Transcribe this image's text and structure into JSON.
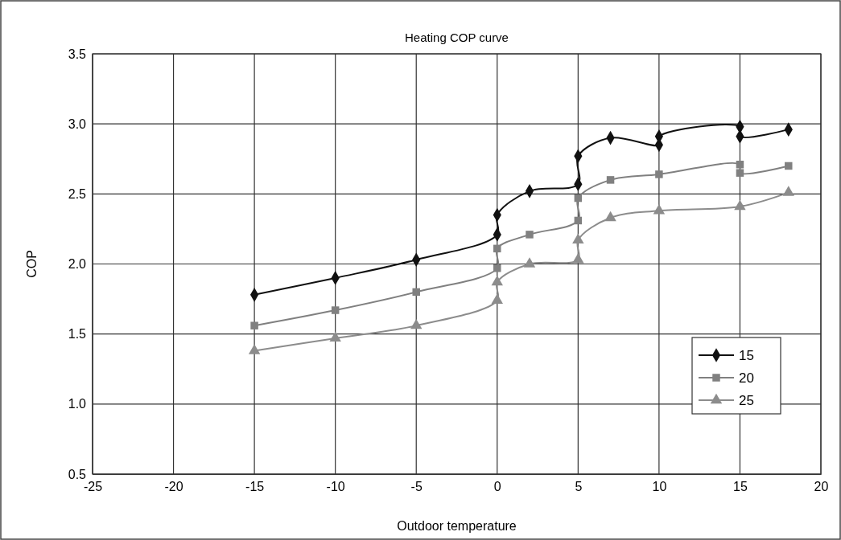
{
  "chart_data": {
    "type": "line",
    "title": "Heating COP curve",
    "xlabel": "Outdoor temperature",
    "ylabel": "COP",
    "xlim": [
      -25,
      20
    ],
    "xticks": [
      -25,
      -20,
      -15,
      -10,
      -5,
      0,
      5,
      10,
      15,
      20
    ],
    "ylim": [
      0.5,
      3.5
    ],
    "yticks": [
      {
        "value": 0.5,
        "label": "0.5"
      },
      {
        "value": 1,
        "label": "1.0"
      },
      {
        "value": 1.5,
        "label": "1.5"
      },
      {
        "value": 2,
        "label": "2.0"
      },
      {
        "value": 2.5,
        "label": "2.5"
      },
      {
        "value": 3,
        "label": "3.0"
      },
      {
        "value": 3.5,
        "label": "3.5"
      }
    ],
    "grid": true,
    "legend": "bottom right",
    "series": [
      {
        "name": "15",
        "color": "#111111",
        "marker": "diamond",
        "x": [
          -15,
          -10,
          -5,
          0,
          0,
          2,
          5,
          5,
          7,
          10,
          10,
          15,
          15,
          18
        ],
        "values": [
          1.78,
          1.9,
          2.03,
          2.21,
          2.35,
          2.52,
          2.57,
          2.77,
          2.9,
          2.85,
          2.91,
          2.98,
          2.91,
          2.96
        ]
      },
      {
        "name": "20",
        "color": "#808080",
        "marker": "square",
        "x": [
          -15,
          -10,
          -5,
          0,
          0,
          2,
          5,
          5,
          7,
          10,
          15,
          15,
          18
        ],
        "values": [
          1.56,
          1.67,
          1.8,
          1.97,
          2.11,
          2.21,
          2.31,
          2.47,
          2.6,
          2.64,
          2.71,
          2.65,
          2.7
        ]
      },
      {
        "name": "25",
        "color": "#8c8c8c",
        "marker": "triangle",
        "x": [
          -15,
          -10,
          -5,
          0,
          0,
          2,
          5,
          5,
          7,
          10,
          15,
          18
        ],
        "values": [
          1.38,
          1.47,
          1.56,
          1.74,
          1.87,
          2.0,
          2.03,
          2.17,
          2.33,
          2.38,
          2.41,
          2.51
        ]
      }
    ]
  }
}
